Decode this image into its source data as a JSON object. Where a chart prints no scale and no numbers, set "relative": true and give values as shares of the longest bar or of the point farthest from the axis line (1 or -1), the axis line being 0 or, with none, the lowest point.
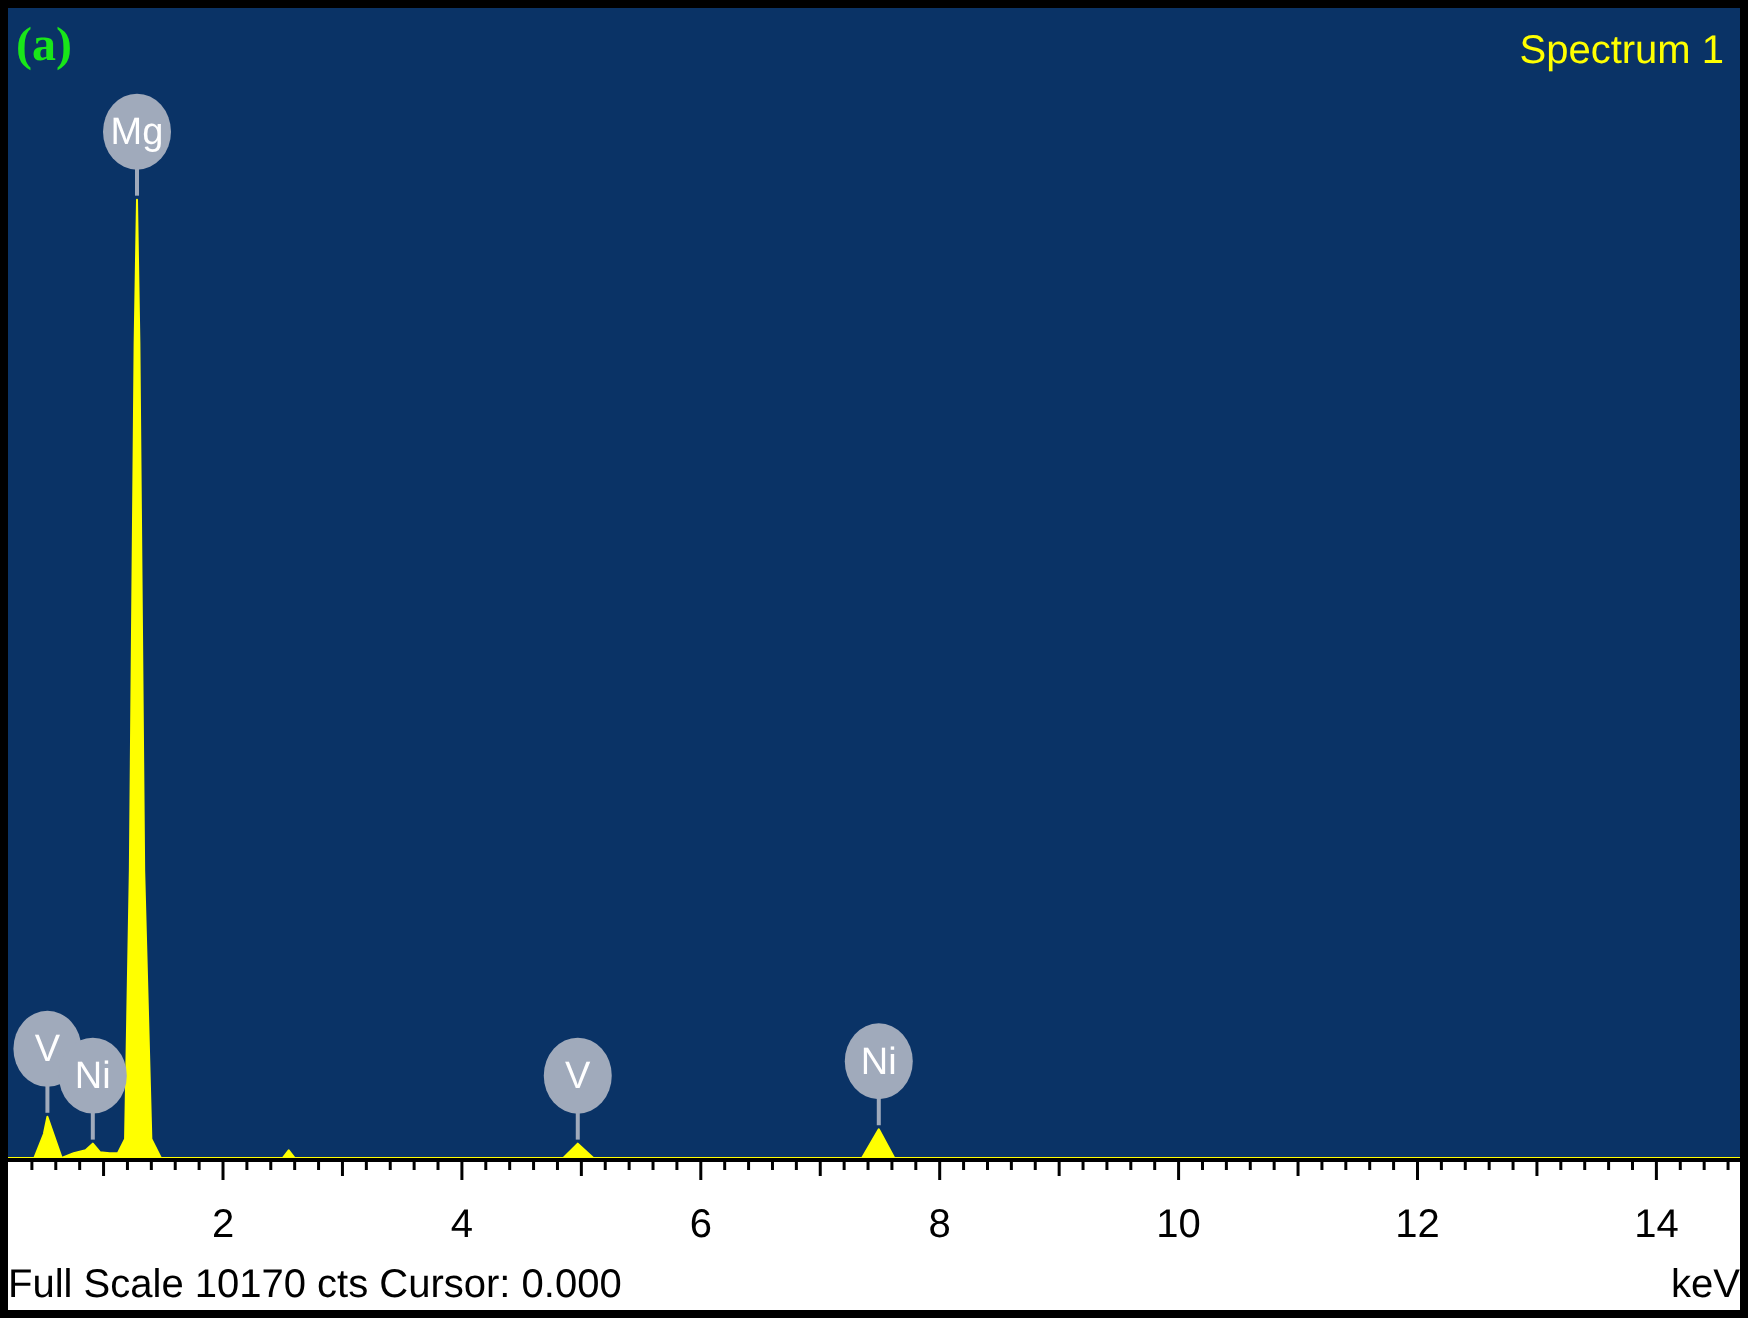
{
  "chart_data": {
    "type": "area",
    "title": "Spectrum 1",
    "xlabel": "keV",
    "relative": true,
    "legend": false,
    "grid": false,
    "marker": "none",
    "xlim": [
      0.2,
      14.7
    ],
    "xticks": [
      {
        "value": 0.4,
        "label": null
      },
      {
        "value": 0.6,
        "label": null
      },
      {
        "value": 0.8,
        "label": null
      },
      {
        "value": 1,
        "label": null
      },
      {
        "value": 1.2,
        "label": null
      },
      {
        "value": 1.4,
        "label": null
      },
      {
        "value": 1.6,
        "label": null
      },
      {
        "value": 1.8,
        "label": null
      },
      2,
      {
        "value": 2.2,
        "label": null
      },
      {
        "value": 2.4,
        "label": null
      },
      {
        "value": 2.6,
        "label": null
      },
      {
        "value": 2.8,
        "label": null
      },
      {
        "value": 3,
        "label": null
      },
      {
        "value": 3.2,
        "label": null
      },
      {
        "value": 3.4,
        "label": null
      },
      {
        "value": 3.6,
        "label": null
      },
      {
        "value": 3.8,
        "label": null
      },
      4,
      {
        "value": 4.2,
        "label": null
      },
      {
        "value": 4.4,
        "label": null
      },
      {
        "value": 4.6,
        "label": null
      },
      {
        "value": 4.8,
        "label": null
      },
      {
        "value": 5,
        "label": null
      },
      {
        "value": 5.2,
        "label": null
      },
      {
        "value": 5.4,
        "label": null
      },
      {
        "value": 5.6,
        "label": null
      },
      {
        "value": 5.8,
        "label": null
      },
      6,
      {
        "value": 6.2,
        "label": null
      },
      {
        "value": 6.4,
        "label": null
      },
      {
        "value": 6.6,
        "label": null
      },
      {
        "value": 6.8,
        "label": null
      },
      {
        "value": 7,
        "label": null
      },
      {
        "value": 7.2,
        "label": null
      },
      {
        "value": 7.4,
        "label": null
      },
      {
        "value": 7.6,
        "label": null
      },
      {
        "value": 7.8,
        "label": null
      },
      8,
      {
        "value": 8.2,
        "label": null
      },
      {
        "value": 8.4,
        "label": null
      },
      {
        "value": 8.6,
        "label": null
      },
      {
        "value": 8.8,
        "label": null
      },
      {
        "value": 9,
        "label": null
      },
      {
        "value": 9.2,
        "label": null
      },
      {
        "value": 9.4,
        "label": null
      },
      {
        "value": 9.6,
        "label": null
      },
      {
        "value": 9.8,
        "label": null
      },
      10,
      {
        "value": 10.2,
        "label": null
      },
      {
        "value": 10.4,
        "label": null
      },
      {
        "value": 10.6,
        "label": null
      },
      {
        "value": 10.8,
        "label": null
      },
      {
        "value": 11,
        "label": null
      },
      {
        "value": 11.2,
        "label": null
      },
      {
        "value": 11.4,
        "label": null
      },
      {
        "value": 11.6,
        "label": null
      },
      {
        "value": 11.8,
        "label": null
      },
      12,
      {
        "value": 12.2,
        "label": null
      },
      {
        "value": 12.4,
        "label": null
      },
      {
        "value": 12.6,
        "label": null
      },
      {
        "value": 12.8,
        "label": null
      },
      {
        "value": 13,
        "label": null
      },
      {
        "value": 13.2,
        "label": null
      },
      {
        "value": 13.4,
        "label": null
      },
      {
        "value": 13.6,
        "label": null
      },
      {
        "value": 13.8,
        "label": null
      },
      14,
      {
        "value": 14.2,
        "label": null
      },
      {
        "value": 14.4,
        "label": null
      },
      {
        "value": 14.6,
        "label": null
      }
    ],
    "series": [
      {
        "color": "#ffff00",
        "x": [
          0.2,
          0.42,
          0.5,
          0.53,
          0.58,
          0.65,
          0.75,
          0.85,
          0.91,
          0.97,
          1.05,
          1.12,
          1.18,
          1.22,
          1.26,
          1.28,
          1.3,
          1.34,
          1.4,
          1.48,
          2.5,
          2.55,
          2.6,
          4.85,
          4.97,
          5.1,
          7.35,
          7.49,
          7.62,
          14.7
        ],
        "values": [
          0,
          0,
          0.025,
          0.043,
          0.025,
          0,
          0.005,
          0.008,
          0.015,
          0.006,
          0.005,
          0.005,
          0.02,
          0.3,
          0.85,
          1,
          0.85,
          0.3,
          0.02,
          0,
          0,
          0.008,
          0,
          0,
          0.015,
          0,
          0,
          0.03,
          0,
          0
        ]
      }
    ],
    "annotations": [
      "(a)",
      "Full Scale 10170 cts Cursor: 0.000",
      {
        "text": "Mg",
        "x": 1.28,
        "y": 1
      },
      {
        "text": "V",
        "x": 0.53,
        "y": 0.043
      },
      {
        "text": "Ni",
        "x": 0.91,
        "y": 0.015
      },
      {
        "text": "V",
        "x": 4.97,
        "y": 0.015
      },
      {
        "text": "Ni",
        "x": 7.49,
        "y": 0.03
      }
    ]
  }
}
